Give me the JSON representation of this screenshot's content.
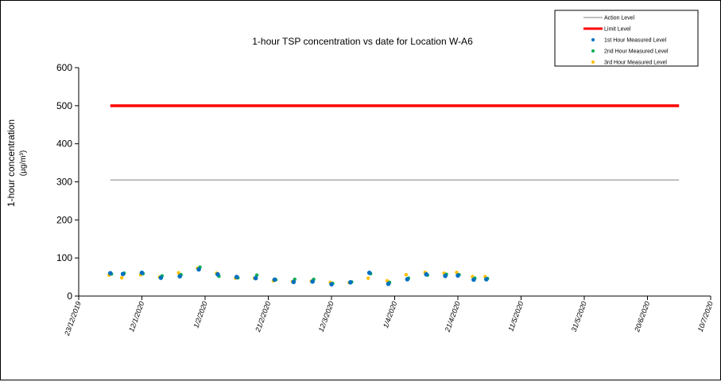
{
  "chart_data": {
    "type": "scatter",
    "title": "1-hour TSP concentration vs date for Location  W-A6",
    "ylabel": "1-hour concentration",
    "ylabel_unit": "(µg/m³)",
    "xlabel": "",
    "ylim": [
      0,
      600
    ],
    "y_ticks": [
      "0",
      "100",
      "200",
      "300",
      "400",
      "500",
      "600"
    ],
    "x_ticks": [
      "23/12/2019",
      "12/1/2020",
      "1/2/2020",
      "21/2/2020",
      "12/3/2020",
      "1/4/2020",
      "21/4/2020",
      "11/5/2020",
      "31/5/2020",
      "20/6/2020",
      "10/7/2020"
    ],
    "grid": false,
    "legend_position": "top-right",
    "reference_lines": [
      {
        "name": "Action Level",
        "y": 305,
        "x_start": "2/1/2020",
        "x_end": "30/6/2020",
        "color": "#808080"
      },
      {
        "name": "Limit Level",
        "y": 500,
        "x_start": "2/1/2020",
        "x_end": "30/6/2020",
        "color": "#ff0000"
      }
    ],
    "x": [
      "2/1/2020",
      "6/1/2020",
      "12/1/2020",
      "18/1/2020",
      "24/1/2020",
      "30/1/2020",
      "5/2/2020",
      "11/2/2020",
      "17/2/2020",
      "23/2/2020",
      "29/2/2020",
      "6/3/2020",
      "12/3/2020",
      "18/3/2020",
      "24/3/2020",
      "30/3/2020",
      "5/4/2020",
      "11/4/2020",
      "17/4/2020",
      "21/4/2020",
      "26/4/2020",
      "30/4/2020"
    ],
    "series": [
      {
        "name": "1st Hour Measured Level",
        "color": "#0070c0",
        "values": [
          60,
          58,
          61,
          48,
          52,
          70,
          57,
          50,
          47,
          43,
          37,
          38,
          31,
          36,
          61,
          32,
          44,
          57,
          53,
          54,
          43,
          44
        ]
      },
      {
        "name": "2nd Hour Measured Level",
        "color": "#00b050",
        "values": [
          58,
          60,
          59,
          53,
          56,
          76,
          52,
          48,
          55,
          43,
          44,
          44,
          33,
          37,
          59,
          36,
          47,
          55,
          57,
          56,
          47,
          46
        ]
      },
      {
        "name": "3rd Hour Measured Level",
        "color": "#ffc000",
        "values": [
          55,
          48,
          56,
          50,
          61,
          73,
          60,
          47,
          47,
          40,
          38,
          39,
          36,
          35,
          47,
          40,
          56,
          62,
          60,
          62,
          51,
          51
        ]
      }
    ]
  }
}
